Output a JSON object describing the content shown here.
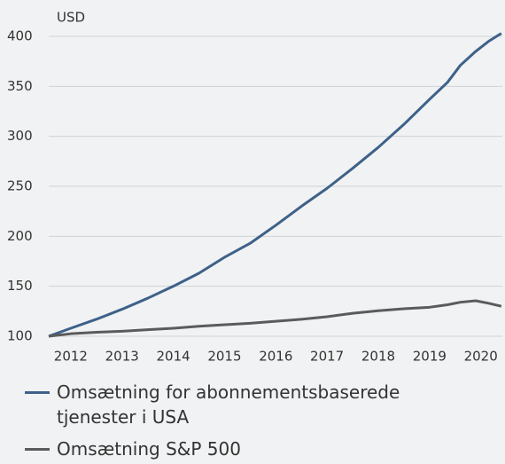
{
  "chart_data": {
    "type": "line",
    "ylabel": "USD",
    "x": [
      2011.57,
      2012,
      2012.5,
      2013,
      2013.5,
      2014,
      2014.5,
      2015,
      2015.5,
      2016,
      2016.5,
      2017,
      2017.5,
      2018,
      2018.5,
      2019,
      2019.35,
      2019.6,
      2019.9,
      2020.15,
      2020.4
    ],
    "series": [
      {
        "name": "Omsætning for abonnementsbaserede tjenester i USA",
        "color": "#3d6189",
        "values": [
          100,
          108,
          117,
          127,
          138,
          150,
          163,
          179,
          193,
          211,
          230,
          248,
          268,
          289,
          312,
          337,
          354,
          371,
          385,
          395,
          403
        ]
      },
      {
        "name": "Omsætning S&P 500",
        "color": "#5b5b5b",
        "values": [
          100,
          102.5,
          104,
          105,
          106.5,
          108,
          110,
          111.5,
          113,
          115,
          117,
          119.5,
          123,
          125.5,
          127.5,
          129,
          131.5,
          134,
          135.5,
          133,
          130
        ]
      }
    ],
    "xlim": [
      2011.57,
      2020.42
    ],
    "xticks": [
      2012,
      2013,
      2014,
      2015,
      2016,
      2017,
      2018,
      2019,
      2020
    ],
    "ylim": [
      100,
      400
    ],
    "yticks": [
      100,
      150,
      200,
      250,
      300,
      350,
      400
    ],
    "grid": true
  }
}
